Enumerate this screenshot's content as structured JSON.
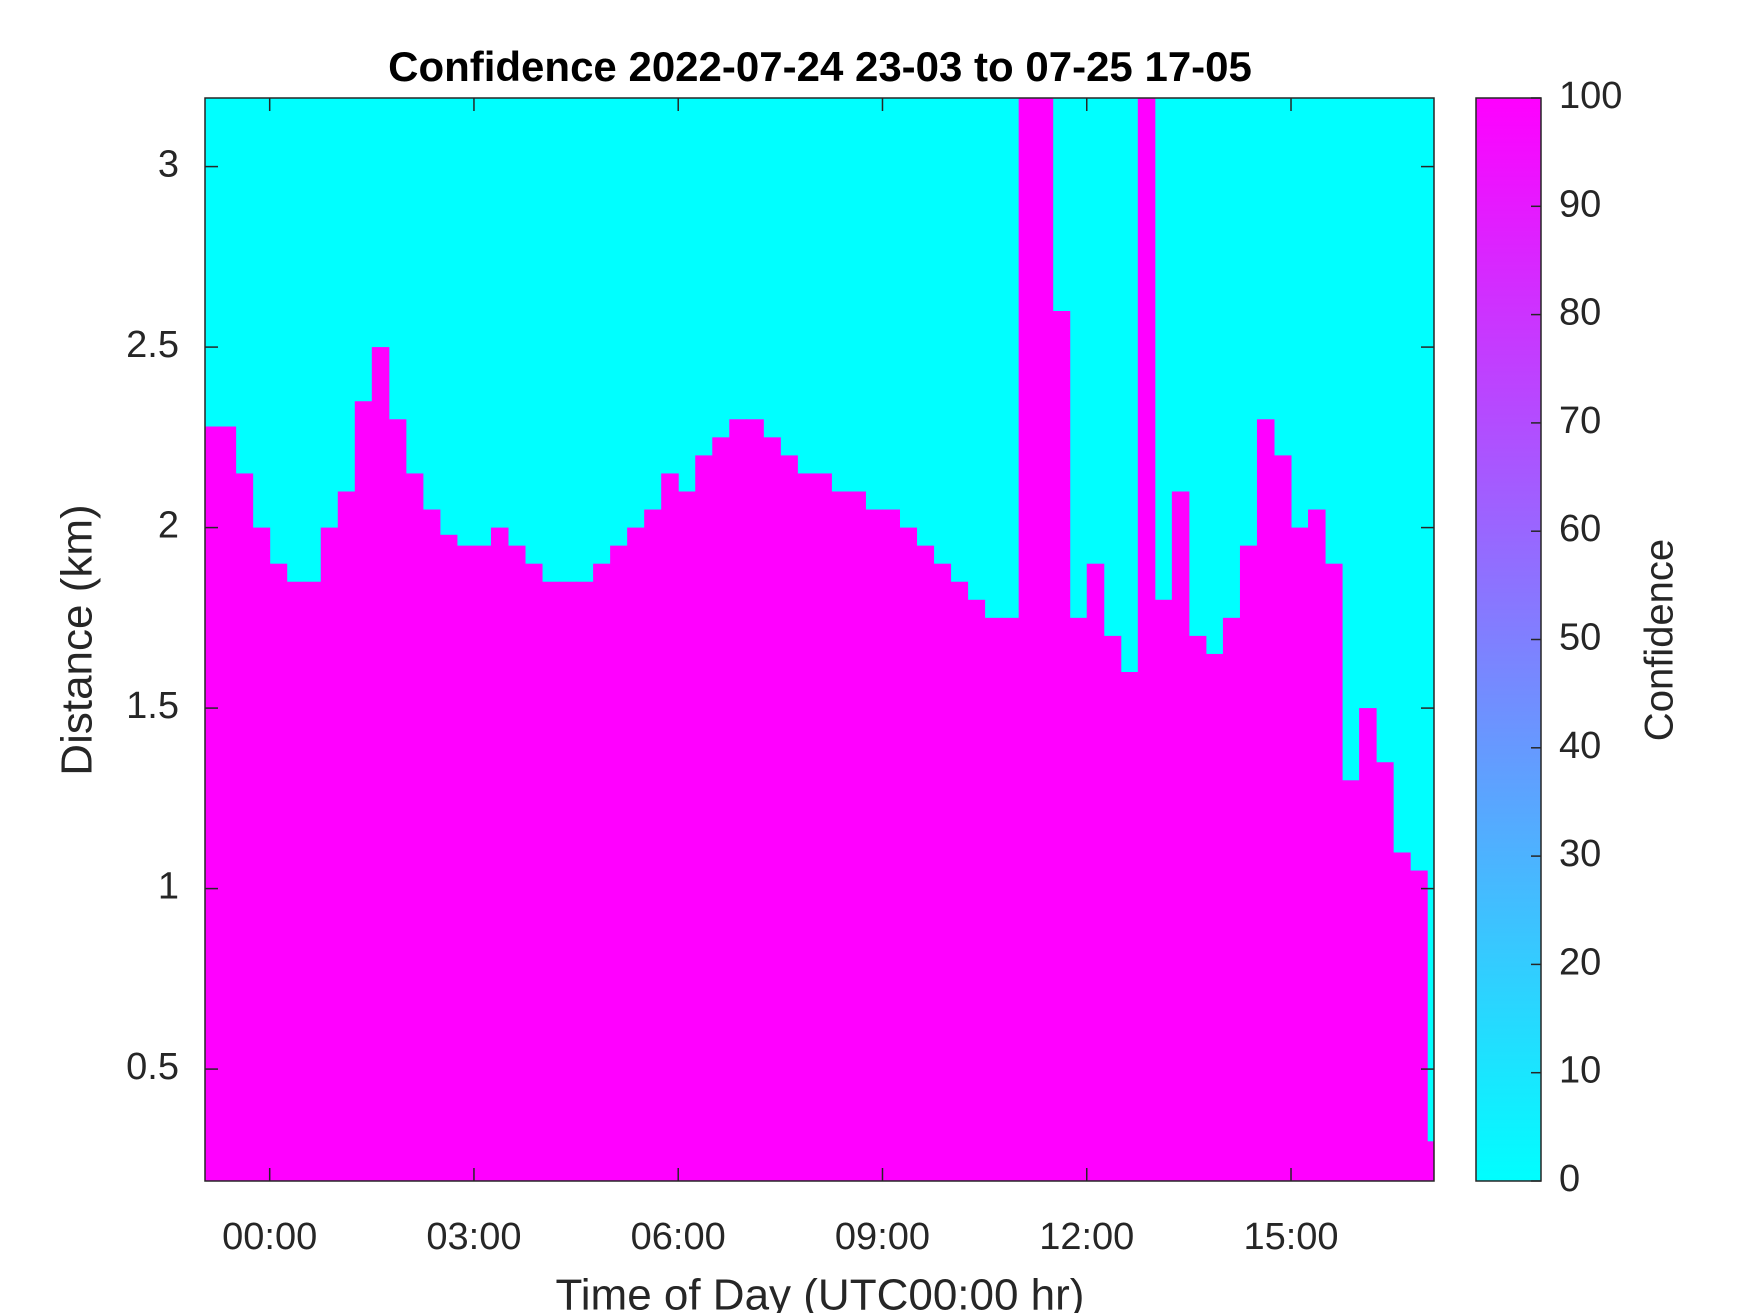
{
  "chart_data": {
    "type": "heatmap",
    "title": "Confidence 2022-07-24 23-03 to 07-25 17-05",
    "xlabel": "Time of Day (UTC00:00 hr)",
    "ylabel": "Distance (km)",
    "x": [
      -0.95,
      -0.75,
      -0.5,
      -0.25,
      0,
      0.25,
      0.5,
      0.75,
      1,
      1.25,
      1.5,
      1.75,
      2,
      2.25,
      2.5,
      2.75,
      3,
      3.25,
      3.5,
      3.75,
      4,
      4.25,
      4.5,
      4.75,
      5,
      5.25,
      5.5,
      5.75,
      6,
      6.25,
      6.5,
      6.75,
      7,
      7.25,
      7.5,
      7.75,
      8,
      8.25,
      8.5,
      8.75,
      9,
      9.25,
      9.5,
      9.75,
      10,
      10.25,
      10.5,
      10.75,
      11,
      11.25,
      11.5,
      11.75,
      12,
      12.25,
      12.5,
      12.75,
      13,
      13.25,
      13.5,
      13.75,
      14,
      14.25,
      14.5,
      14.75,
      15,
      15.25,
      15.5,
      15.75,
      16,
      16.25,
      16.5,
      16.75,
      17
    ],
    "values": [
      2.28,
      2.28,
      2.15,
      2.0,
      1.9,
      1.85,
      1.85,
      2.0,
      2.1,
      2.35,
      2.5,
      2.3,
      2.15,
      2.05,
      1.98,
      1.95,
      1.95,
      2.0,
      1.95,
      1.9,
      1.85,
      1.85,
      1.85,
      1.9,
      1.95,
      2.0,
      2.05,
      2.15,
      2.1,
      2.2,
      2.25,
      2.3,
      2.3,
      2.25,
      2.2,
      2.15,
      2.15,
      2.1,
      2.1,
      2.05,
      2.05,
      2.0,
      1.95,
      1.9,
      1.85,
      1.8,
      1.75,
      1.75,
      3.19,
      3.19,
      2.6,
      1.75,
      1.9,
      1.7,
      1.6,
      3.19,
      1.8,
      2.1,
      1.7,
      1.65,
      1.75,
      1.95,
      2.3,
      2.2,
      2.0,
      2.05,
      1.9,
      1.3,
      1.5,
      1.35,
      1.1,
      1.05,
      0.3
    ],
    "xlim": [
      -0.95,
      17.1
    ],
    "ylim": [
      0.19,
      3.19
    ],
    "xticks": [
      {
        "value": 0,
        "label": "00:00"
      },
      {
        "value": 3,
        "label": "03:00"
      },
      {
        "value": 6,
        "label": "06:00"
      },
      {
        "value": 9,
        "label": "09:00"
      },
      {
        "value": 12,
        "label": "12:00"
      },
      {
        "value": 15,
        "label": "15:00"
      }
    ],
    "yticks": [
      0.5,
      1,
      1.5,
      2,
      2.5,
      3
    ],
    "colormap": [
      "#00ffff",
      "#ff00ff"
    ],
    "clim": [
      0,
      100
    ],
    "cticks": [
      0,
      10,
      20,
      30,
      40,
      50,
      60,
      70,
      80,
      90,
      100
    ],
    "clabel": "Confidence"
  }
}
